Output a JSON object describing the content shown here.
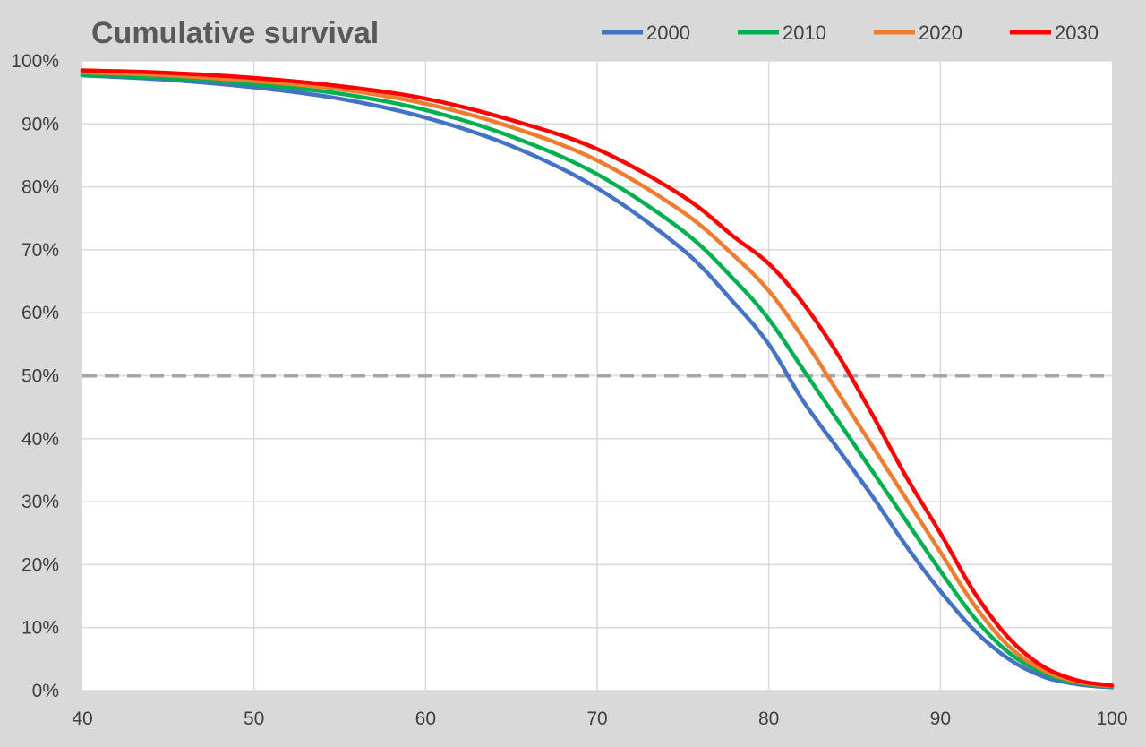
{
  "chart_data": {
    "type": "line",
    "title": "Cumulative survival",
    "xlabel": "",
    "ylabel": "",
    "xlim": [
      40,
      100
    ],
    "ylim": [
      0,
      1
    ],
    "x_ticks": [
      "40",
      "50",
      "60",
      "70",
      "80",
      "90",
      "100"
    ],
    "y_ticks": [
      "0%",
      "10%",
      "20%",
      "30%",
      "40%",
      "50%",
      "60%",
      "70%",
      "80%",
      "90%",
      "100%"
    ],
    "grid": "vertical and horizontal",
    "legend_position": "top-right",
    "reference_line": {
      "y": 0.5,
      "style": "dashed",
      "color": "#a6a6a6"
    },
    "x": [
      40,
      45,
      50,
      55,
      60,
      65,
      70,
      75,
      78,
      80,
      82,
      84,
      86,
      88,
      90,
      92,
      94,
      96,
      98,
      100
    ],
    "series": [
      {
        "name": "2000",
        "color": "#4472c4",
        "values": [
          0.977,
          0.97,
          0.958,
          0.94,
          0.91,
          0.865,
          0.798,
          0.7,
          0.615,
          0.55,
          0.46,
          0.385,
          0.31,
          0.23,
          0.158,
          0.095,
          0.05,
          0.022,
          0.01,
          0.005
        ]
      },
      {
        "name": "2010",
        "color": "#00b050",
        "values": [
          0.978,
          0.973,
          0.963,
          0.948,
          0.922,
          0.88,
          0.82,
          0.73,
          0.652,
          0.59,
          0.51,
          0.43,
          0.35,
          0.27,
          0.19,
          0.115,
          0.06,
          0.028,
          0.012,
          0.006
        ]
      },
      {
        "name": "2020",
        "color": "#ed7d31",
        "values": [
          0.982,
          0.977,
          0.968,
          0.955,
          0.932,
          0.895,
          0.842,
          0.76,
          0.69,
          0.635,
          0.56,
          0.475,
          0.39,
          0.305,
          0.22,
          0.135,
          0.07,
          0.032,
          0.014,
          0.007
        ]
      },
      {
        "name": "2030",
        "color": "#ff0000",
        "values": [
          0.985,
          0.981,
          0.973,
          0.96,
          0.94,
          0.906,
          0.86,
          0.785,
          0.72,
          0.678,
          0.615,
          0.535,
          0.44,
          0.34,
          0.25,
          0.155,
          0.083,
          0.038,
          0.016,
          0.008
        ]
      }
    ]
  }
}
